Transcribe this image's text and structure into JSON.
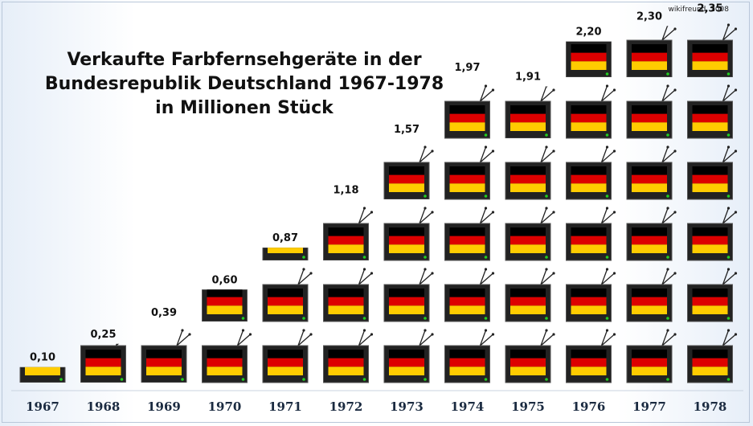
{
  "credit": "wikifreund, 2008",
  "title_lines": [
    "Verkaufte Farbfernsehgeräte in der",
    "Bundesrepublik Deutschland 1967-1978",
    "in Millionen Stück"
  ],
  "colors": {
    "black": "#000000",
    "red": "#dd0000",
    "gold": "#ffcc00",
    "screen_frame": "#222222",
    "led": "#22cc22"
  },
  "chart_data": {
    "type": "bar",
    "title": "Verkaufte Farbfernsehgeräte in der Bundesrepublik Deutschland 1967-1978 in Millionen Stück",
    "categories": [
      "1967",
      "1968",
      "1969",
      "1970",
      "1971",
      "1972",
      "1973",
      "1974",
      "1975",
      "1976",
      "1977",
      "1978"
    ],
    "values": [
      0.1,
      0.25,
      0.39,
      0.6,
      0.87,
      1.18,
      1.57,
      1.97,
      1.91,
      2.2,
      2.3,
      2.35
    ],
    "value_labels": [
      "0,10",
      "0,25",
      "0,39",
      "0,60",
      "0,87",
      "1,18",
      "1,57",
      "1,97",
      "1,91",
      "2,20",
      "2,30",
      "2,35"
    ],
    "unit": "Millionen Stück",
    "pictogram": "television with German flag, one icon per 0.4 million (approx.)",
    "grid": false,
    "legend": "none"
  }
}
